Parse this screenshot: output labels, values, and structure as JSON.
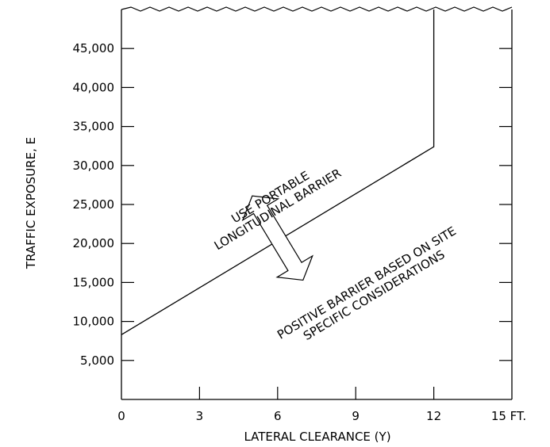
{
  "chart_data": {
    "type": "line",
    "title": "",
    "xlabel": "LATERAL CLEARANCE (Y)",
    "ylabel": "TRAFFIC EXPOSURE, E",
    "xlim": [
      0,
      15
    ],
    "ylim": [
      0,
      50000
    ],
    "x_ticks": [
      {
        "value": 0,
        "label": "0"
      },
      {
        "value": 3,
        "label": "3"
      },
      {
        "value": 6,
        "label": "6"
      },
      {
        "value": 9,
        "label": "9"
      },
      {
        "value": 12,
        "label": "12"
      },
      {
        "value": 15,
        "label": "15 FT."
      }
    ],
    "y_ticks": [
      {
        "value": 5000,
        "label": "5,000"
      },
      {
        "value": 10000,
        "label": "10,000"
      },
      {
        "value": 15000,
        "label": "15,000"
      },
      {
        "value": 20000,
        "label": "20,000"
      },
      {
        "value": 25000,
        "label": "25,000"
      },
      {
        "value": 30000,
        "label": "30,000"
      },
      {
        "value": 35000,
        "label": "35,000"
      },
      {
        "value": 40000,
        "label": "40,000"
      },
      {
        "value": 45000,
        "label": "45,000"
      }
    ],
    "series": [
      {
        "x": [
          0,
          12,
          12
        ],
        "y": [
          8300,
          32400,
          50000
        ]
      }
    ],
    "regions": {
      "above": {
        "lines": [
          "USE PORTABLE",
          "LONGITUDINAL BARRIER"
        ],
        "x": 5.8,
        "y": 25500
      },
      "below": {
        "lines": [
          "POSITIVE BARRIER BASED ON SITE",
          "SPECIFIC CONSIDERATIONS"
        ],
        "x": 9.5,
        "y": 14500
      }
    },
    "grid": false,
    "legend": "none"
  }
}
